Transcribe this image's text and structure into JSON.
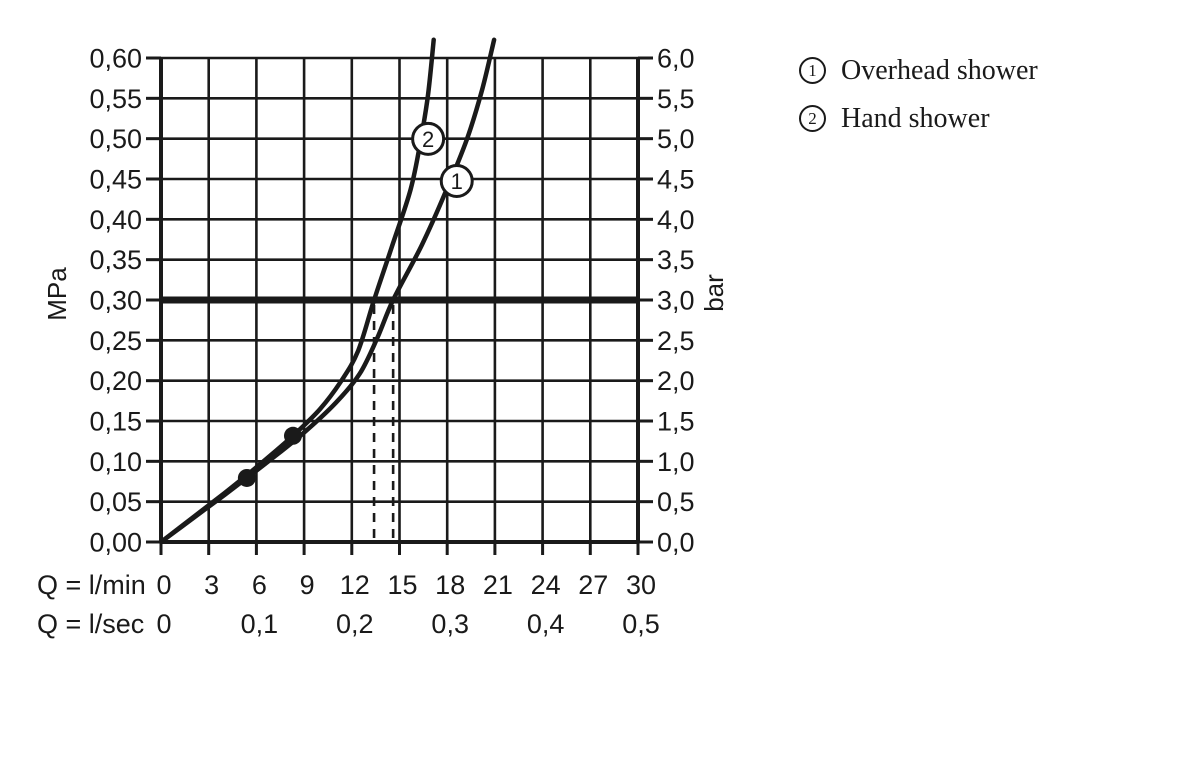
{
  "legend": {
    "items": [
      {
        "symbol": "1",
        "label": "Overhead shower"
      },
      {
        "symbol": "2",
        "label": "Hand shower"
      }
    ]
  },
  "chart_data": {
    "type": "line",
    "title": "",
    "grid": true,
    "colors": {
      "ink": "#1a1a1a",
      "background": "#ffffff"
    },
    "x_axis": {
      "primary_label": "Q = l/min",
      "secondary_label": "Q = l/sec",
      "range": [
        0,
        30
      ],
      "grid_step": 3,
      "primary_ticks": [
        {
          "q": 0,
          "label": "0"
        },
        {
          "q": 3,
          "label": "3"
        },
        {
          "q": 6,
          "label": "6"
        },
        {
          "q": 9,
          "label": "9"
        },
        {
          "q": 12,
          "label": "12"
        },
        {
          "q": 15,
          "label": "15"
        },
        {
          "q": 18,
          "label": "18"
        },
        {
          "q": 21,
          "label": "21"
        },
        {
          "q": 24,
          "label": "24"
        },
        {
          "q": 27,
          "label": "27"
        },
        {
          "q": 30,
          "label": "30"
        }
      ],
      "secondary_ticks": [
        {
          "q": 0,
          "label": "0"
        },
        {
          "q": 6,
          "label": "0,1"
        },
        {
          "q": 12,
          "label": "0,2"
        },
        {
          "q": 18,
          "label": "0,3"
        },
        {
          "q": 24,
          "label": "0,4"
        },
        {
          "q": 30,
          "label": "0,5"
        }
      ]
    },
    "y_axis_left": {
      "unit": "MPa",
      "range": [
        0,
        0.6
      ],
      "grid_step": 0.05,
      "ticks": [
        {
          "v": 0.0,
          "label": "0,00"
        },
        {
          "v": 0.05,
          "label": "0,05"
        },
        {
          "v": 0.1,
          "label": "0,10"
        },
        {
          "v": 0.15,
          "label": "0,15"
        },
        {
          "v": 0.2,
          "label": "0,20"
        },
        {
          "v": 0.25,
          "label": "0,25"
        },
        {
          "v": 0.3,
          "label": "0,30"
        },
        {
          "v": 0.35,
          "label": "0,35"
        },
        {
          "v": 0.4,
          "label": "0,40"
        },
        {
          "v": 0.45,
          "label": "0,45"
        },
        {
          "v": 0.5,
          "label": "0,50"
        },
        {
          "v": 0.55,
          "label": "0,55"
        },
        {
          "v": 0.6,
          "label": "0,60"
        }
      ]
    },
    "y_axis_right": {
      "unit": "bar",
      "ticks": [
        {
          "v": 0.0,
          "label": "0,0"
        },
        {
          "v": 0.05,
          "label": "0,5"
        },
        {
          "v": 0.1,
          "label": "1,0"
        },
        {
          "v": 0.15,
          "label": "1,5"
        },
        {
          "v": 0.2,
          "label": "2,0"
        },
        {
          "v": 0.25,
          "label": "2,5"
        },
        {
          "v": 0.3,
          "label": "3,0"
        },
        {
          "v": 0.35,
          "label": "3,5"
        },
        {
          "v": 0.4,
          "label": "4,0"
        },
        {
          "v": 0.45,
          "label": "4,5"
        },
        {
          "v": 0.5,
          "label": "5,0"
        },
        {
          "v": 0.55,
          "label": "5,5"
        },
        {
          "v": 0.6,
          "label": "6,0"
        }
      ]
    },
    "reference_line": {
      "mpa": 0.3,
      "bar": 3.0
    },
    "result_guides": [
      {
        "series": "2",
        "q_lmin": 13.4
      },
      {
        "series": "1",
        "q_lmin": 14.6
      }
    ],
    "series": [
      {
        "id": "1",
        "name": "Overhead shower",
        "points": [
          [
            0,
            0
          ],
          [
            2,
            0.0292
          ],
          [
            4,
            0.0584
          ],
          [
            5.4,
            0.0794
          ],
          [
            7,
            0.1037
          ],
          [
            9,
            0.1357
          ],
          [
            11,
            0.1727
          ],
          [
            12.5,
            0.2087
          ],
          [
            13.6,
            0.2527
          ],
          [
            14.6,
            0.3
          ],
          [
            16.4,
            0.368
          ],
          [
            17.9,
            0.434
          ],
          [
            19.25,
            0.5
          ],
          [
            20.2,
            0.561
          ],
          [
            20.95,
            0.6225
          ]
        ],
        "dot": [
          5.4,
          0.0794
        ],
        "label_at": [
          18.6,
          0.4475
        ]
      },
      {
        "id": "2",
        "name": "Hand shower",
        "points": [
          [
            0,
            0
          ],
          [
            2,
            0.0304
          ],
          [
            4,
            0.0608
          ],
          [
            5.4,
            0.0829
          ],
          [
            7,
            0.1093
          ],
          [
            8.3,
            0.1317
          ],
          [
            10,
            0.1648
          ],
          [
            11.3,
            0.1986
          ],
          [
            12.4,
            0.2371
          ],
          [
            13.4,
            0.3
          ],
          [
            14.5,
            0.365
          ],
          [
            15.7,
            0.437
          ],
          [
            16.35,
            0.5
          ],
          [
            16.8,
            0.555
          ],
          [
            17.15,
            0.6225
          ]
        ],
        "dot": [
          8.3,
          0.1317
        ],
        "label_at": [
          16.8,
          0.4997
        ]
      }
    ]
  }
}
